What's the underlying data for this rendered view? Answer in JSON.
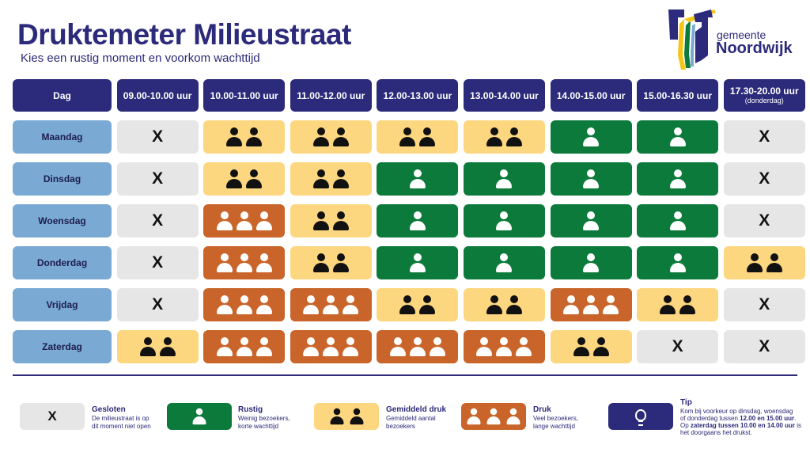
{
  "header": {
    "title": "Druktemeter Milieustraat",
    "subtitle": "Kies een rustig moment en voorkom wachttijd"
  },
  "logo": {
    "line1": "gemeente",
    "line2": "Noordwijk"
  },
  "table": {
    "day_header": "Dag",
    "columns": [
      {
        "label": "09.00-10.00 uur"
      },
      {
        "label": "10.00-11.00 uur"
      },
      {
        "label": "11.00-12.00 uur"
      },
      {
        "label": "12.00-13.00 uur"
      },
      {
        "label": "13.00-14.00 uur"
      },
      {
        "label": "14.00-15.00 uur"
      },
      {
        "label": "15.00-16.30 uur"
      },
      {
        "label": "17.30-20.00 uur",
        "note": "(donderdag)"
      }
    ],
    "rows": [
      {
        "day": "Maandag",
        "levels": [
          "closed",
          "average",
          "average",
          "average",
          "average",
          "quiet",
          "quiet",
          "closed"
        ]
      },
      {
        "day": "Dinsdag",
        "levels": [
          "closed",
          "average",
          "average",
          "quiet",
          "quiet",
          "quiet",
          "quiet",
          "closed"
        ]
      },
      {
        "day": "Woensdag",
        "levels": [
          "closed",
          "busy",
          "average",
          "quiet",
          "quiet",
          "quiet",
          "quiet",
          "closed"
        ]
      },
      {
        "day": "Donderdag",
        "levels": [
          "closed",
          "busy",
          "average",
          "quiet",
          "quiet",
          "quiet",
          "quiet",
          "average"
        ]
      },
      {
        "day": "Vrijdag",
        "levels": [
          "closed",
          "busy",
          "busy",
          "average",
          "average",
          "busy",
          "average",
          "closed"
        ]
      },
      {
        "day": "Zaterdag",
        "levels": [
          "average",
          "busy",
          "busy",
          "busy",
          "busy",
          "average",
          "closed",
          "closed"
        ]
      }
    ],
    "closed_symbol": "X"
  },
  "legend": {
    "closed": {
      "symbol": "X",
      "title": "Gesloten",
      "desc1": "De milieustraat is op",
      "desc2": "dit moment niet open"
    },
    "quiet": {
      "title": "Rustig",
      "desc1": "Weinig bezoekers,",
      "desc2": "korte wachttijd"
    },
    "average": {
      "title": "Gemiddeld druk",
      "desc1": "Gemiddeld aantal",
      "desc2": "bezoekers"
    },
    "busy": {
      "title": "Druk",
      "desc1": "Veel bezoekers,",
      "desc2": "lange wachttijd"
    },
    "tip": {
      "title": "Tip",
      "line1": "Kom bij voorkeur op dinsdag, woensdag",
      "line2a": "of donderdag tussen ",
      "line2b": "12.00 en 15.00 uur",
      "line3a": "Op ",
      "line3b": "zaterdag tussen 10.00 en 14.00 uur",
      "line3c": " is",
      "line4": "het doorgaans het drukst."
    }
  },
  "colors": {
    "navy": "#2c2a7a",
    "day": "#7aa9d4",
    "closed": "#e6e6e6",
    "quiet": "#0b7a3b",
    "average": "#fdd77f",
    "busy": "#c9652a"
  },
  "icons": {
    "person": "person-icon",
    "bulb": "lightbulb-icon",
    "logo": "noordwijk-logo"
  }
}
